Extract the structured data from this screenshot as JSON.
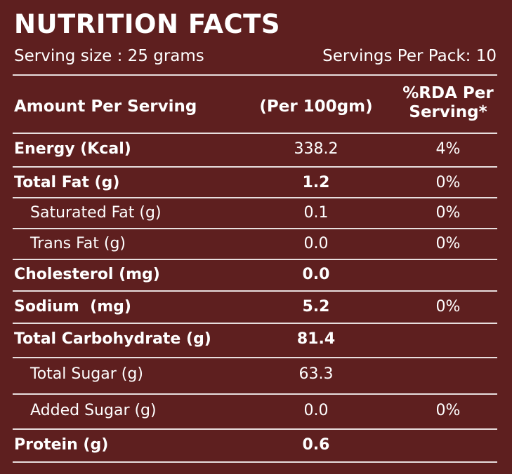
{
  "title": "NUTRITION FACTS",
  "serving_size": "Serving size : 25 grams",
  "servings_per_pack": "Servings Per Pack: 10",
  "header": {
    "amount": "Amount Per Serving",
    "per100": "(Per 100gm)",
    "rda_line1": "%RDA Per",
    "rda_line2": "Serving*"
  },
  "rows": [
    {
      "name": "Energy (Kcal)",
      "value": "338.2",
      "rda": "4%"
    },
    {
      "name": "Total Fat (g)",
      "value": "1.2",
      "rda": "0%"
    },
    {
      "name": "Saturated Fat (g)",
      "value": "0.1",
      "rda": "0%"
    },
    {
      "name": "Trans Fat (g)",
      "value": "0.0",
      "rda": "0%"
    },
    {
      "name": "Cholesterol (mg)",
      "value": "0.0",
      "rda": ""
    },
    {
      "name": "Sodium  (mg)",
      "value": "5.2",
      "rda": "0%"
    },
    {
      "name": "Total Carbohydrate (g)",
      "value": "81.4",
      "rda": ""
    },
    {
      "name": "Total Sugar (g)",
      "value": "63.3",
      "rda": ""
    },
    {
      "name": "Added Sugar (g)",
      "value": "0.0",
      "rda": "0%"
    },
    {
      "name": "Protein (g)",
      "value": "0.6",
      "rda": ""
    }
  ]
}
